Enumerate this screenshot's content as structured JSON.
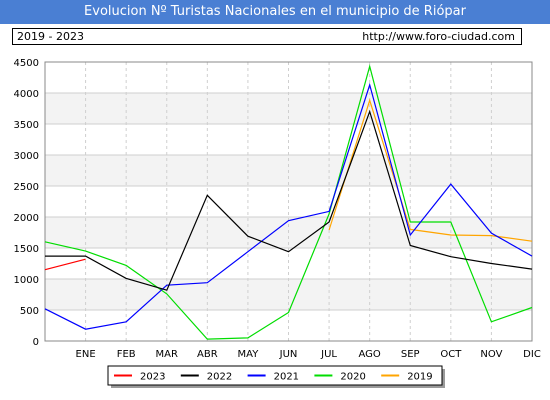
{
  "header": {
    "title": "Evolucion Nº Turistas Nacionales en el municipio de Riópar"
  },
  "info": {
    "years": "2019 - 2023",
    "url": "http://www.foro-ciudad.com"
  },
  "chart_data": {
    "type": "line",
    "categories": [
      "ENE",
      "FEB",
      "MAR",
      "ABR",
      "MAY",
      "JUN",
      "JUL",
      "AGO",
      "SEP",
      "OCT",
      "NOV",
      "DIC"
    ],
    "ylim": [
      0,
      4500
    ],
    "yticks": [
      0,
      500,
      1000,
      1500,
      2000,
      2500,
      3000,
      3500,
      4000,
      4500
    ],
    "grid": true,
    "legend_position": "bottom",
    "series": [
      {
        "name": "2023",
        "color": "#ff0000",
        "start": 1150,
        "values": [
          1320,
          null,
          null,
          null,
          null,
          null,
          null,
          null,
          null,
          null,
          null,
          null
        ]
      },
      {
        "name": "2022",
        "color": "#000000",
        "start": 1370,
        "values": [
          1370,
          1010,
          820,
          2350,
          1690,
          1440,
          1920,
          3700,
          1540,
          1360,
          1250,
          1160
        ]
      },
      {
        "name": "2021",
        "color": "#0000ff",
        "start": 520,
        "values": [
          190,
          310,
          900,
          940,
          1440,
          1940,
          2090,
          4130,
          1710,
          2530,
          1740,
          1370
        ]
      },
      {
        "name": "2020",
        "color": "#00dd00",
        "start": 1600,
        "values": [
          1450,
          1220,
          760,
          30,
          50,
          460,
          2050,
          4430,
          1920,
          1920,
          310,
          540
        ]
      },
      {
        "name": "2019",
        "color": "#ffa500",
        "start": null,
        "values": [
          null,
          null,
          null,
          null,
          null,
          null,
          1790,
          3880,
          1800,
          1710,
          1700,
          1610
        ]
      }
    ]
  }
}
